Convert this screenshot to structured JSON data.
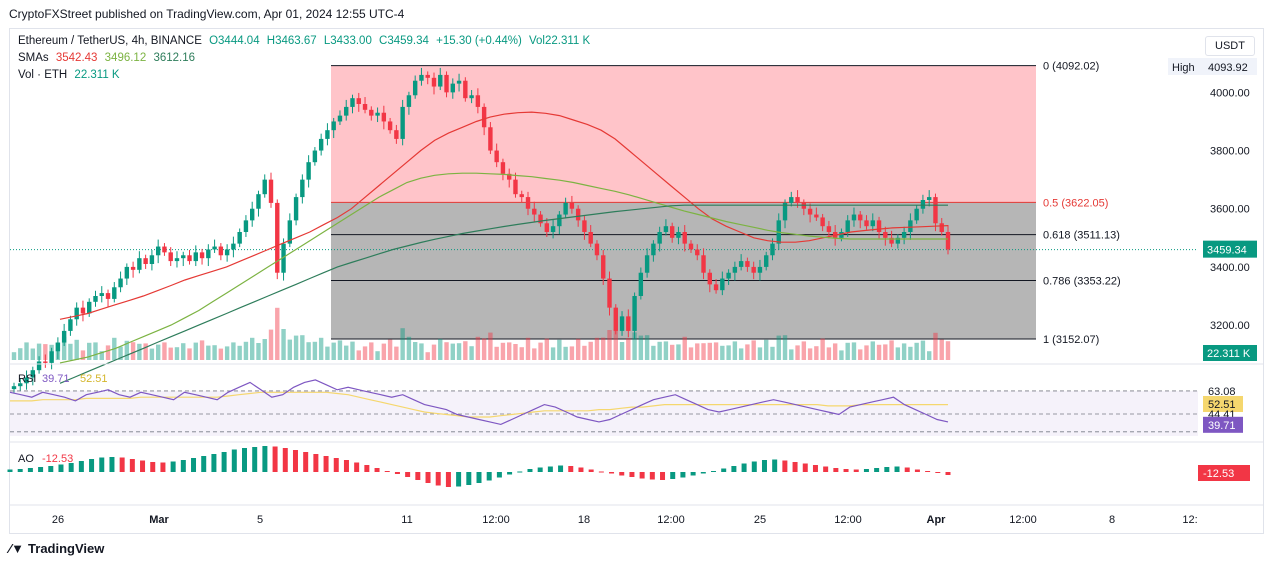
{
  "header": {
    "published": "CryptoFXStreet published on TradingView.com, Apr 01, 2024 12:55 UTC-4"
  },
  "legend": {
    "symbol": "Ethereum / TetherUS, 4h, BINANCE",
    "open": "O3444.04",
    "high": "H3463.67",
    "low": "L3433.00",
    "close": "C3459.34",
    "change": "+15.30 (+0.44%)",
    "vol": "Vol22.311 K",
    "sma_label": "SMAs",
    "sma1": "3542.43",
    "sma2": "3496.12",
    "sma3": "3612.16",
    "vol_label": "Vol · ETH",
    "vol_value": "22.311 K"
  },
  "unit_button": "USDT",
  "footer": {
    "brand": "TradingView"
  },
  "colors": {
    "up": "#089981",
    "down": "#f23645",
    "sma_fast": "#e53935",
    "sma_mid": "#7cb342",
    "sma_slow": "#2e7d5b",
    "fib_upper": "#ffc1c6",
    "fib_lower": "#b2b2b2",
    "rsi": "#7e57c2",
    "rsi_ma": "#f5d76e"
  },
  "chart_data": {
    "type": "candlestick",
    "price_axis": {
      "ticks": [
        "4000.00",
        "3800.00",
        "3600.00",
        "3400.00",
        "3200.00"
      ],
      "tick_values": [
        4000,
        3800,
        3600,
        3400,
        3200
      ],
      "range": [
        3080,
        4180
      ]
    },
    "time_axis": [
      "26",
      "Mar",
      "5",
      "11",
      "12:00",
      "18",
      "12:00",
      "25",
      "12:00",
      "Apr",
      "12:00",
      "8",
      "12:"
    ],
    "high_label": "High",
    "high_value": "4093.92",
    "last_price": "3459.34",
    "volume_label": "22.311 K",
    "fib_levels": [
      {
        "label": "0 (4092.02)",
        "value": 4092.02,
        "color": "#131722"
      },
      {
        "label": "0.5 (3622.05)",
        "value": 3622.05,
        "color": "#e53935"
      },
      {
        "label": "0.618 (3511.13)",
        "value": 3511.13,
        "color": "#131722"
      },
      {
        "label": "0.786 (3353.22)",
        "value": 3353.22,
        "color": "#131722"
      },
      {
        "label": "1 (3152.07)",
        "value": 3152.07,
        "color": "#131722"
      }
    ],
    "candles_close": [
      2990,
      3000,
      3020,
      3045,
      3075,
      3070,
      3110,
      3140,
      3180,
      3220,
      3260,
      3240,
      3280,
      3300,
      3310,
      3290,
      3330,
      3360,
      3400,
      3390,
      3430,
      3410,
      3440,
      3470,
      3450,
      3420,
      3430,
      3440,
      3420,
      3450,
      3430,
      3460,
      3470,
      3440,
      3460,
      3480,
      3520,
      3560,
      3600,
      3650,
      3700,
      3620,
      3380,
      3480,
      3560,
      3640,
      3700,
      3760,
      3800,
      3840,
      3870,
      3900,
      3920,
      3950,
      3980,
      3960,
      3940,
      3920,
      3930,
      3900,
      3870,
      3840,
      3950,
      3990,
      4040,
      4060,
      4050,
      4020,
      4060,
      4000,
      4030,
      4040,
      3980,
      3990,
      3950,
      3880,
      3800,
      3760,
      3720,
      3700,
      3650,
      3640,
      3600,
      3580,
      3550,
      3520,
      3540,
      3580,
      3620,
      3600,
      3560,
      3520,
      3480,
      3440,
      3360,
      3260,
      3180,
      3230,
      3180,
      3300,
      3380,
      3440,
      3480,
      3520,
      3540,
      3500,
      3520,
      3480,
      3460,
      3440,
      3380,
      3340,
      3320,
      3360,
      3380,
      3400,
      3420,
      3400,
      3380,
      3400,
      3440,
      3480,
      3560,
      3620,
      3640,
      3620,
      3600,
      3580,
      3570,
      3540,
      3520,
      3500,
      3520,
      3560,
      3580,
      3560,
      3540,
      3560,
      3520,
      3500,
      3480,
      3500,
      3520,
      3560,
      3600,
      3630,
      3640,
      3550,
      3520,
      3460
    ],
    "sma_fast": [
      3220,
      3230,
      3240,
      3255,
      3270,
      3285,
      3300,
      3318,
      3336,
      3355,
      3370,
      3385,
      3400,
      3420,
      3440,
      3460,
      3480,
      3500,
      3520,
      3545,
      3570,
      3600,
      3640,
      3680,
      3720,
      3760,
      3800,
      3835,
      3860,
      3880,
      3900,
      3915,
      3925,
      3930,
      3932,
      3928,
      3920,
      3905,
      3890,
      3870,
      3840,
      3800,
      3760,
      3720,
      3680,
      3640,
      3600,
      3565,
      3540,
      3520,
      3500,
      3490,
      3485,
      3485,
      3490,
      3500,
      3510,
      3520,
      3525,
      3530,
      3534,
      3536,
      3538,
      3540,
      3542
    ],
    "sma_mid": [
      3070,
      3080,
      3090,
      3105,
      3120,
      3140,
      3160,
      3180,
      3200,
      3225,
      3250,
      3280,
      3310,
      3340,
      3370,
      3400,
      3430,
      3460,
      3490,
      3520,
      3550,
      3580,
      3610,
      3640,
      3665,
      3690,
      3705,
      3715,
      3720,
      3722,
      3722,
      3720,
      3718,
      3714,
      3710,
      3704,
      3698,
      3690,
      3680,
      3670,
      3660,
      3648,
      3634,
      3620,
      3606,
      3592,
      3580,
      3568,
      3556,
      3546,
      3536,
      3526,
      3518,
      3512,
      3506,
      3502,
      3498,
      3496,
      3496,
      3496,
      3496,
      3496,
      3496,
      3496,
      3496
    ],
    "sma_slow": [
      3000,
      3020,
      3040,
      3060,
      3080,
      3100,
      3120,
      3140,
      3160,
      3180,
      3200,
      3220,
      3240,
      3260,
      3280,
      3300,
      3320,
      3340,
      3360,
      3380,
      3400,
      3415,
      3430,
      3445,
      3460,
      3472,
      3484,
      3495,
      3505,
      3515,
      3523,
      3531,
      3539,
      3546,
      3553,
      3560,
      3566,
      3572,
      3578,
      3584,
      3590,
      3595,
      3600,
      3605,
      3610,
      3612,
      3612,
      3612,
      3612,
      3612,
      3612,
      3612,
      3612,
      3612,
      3612,
      3612,
      3612,
      3612,
      3612,
      3612,
      3612,
      3612,
      3612,
      3612,
      3612
    ],
    "rsi": {
      "label": "RSI",
      "value": "39.71",
      "ma_value": "52.51",
      "levels": [
        "63.08",
        "44.41"
      ],
      "values": [
        62,
        60,
        58,
        62,
        60,
        58,
        55,
        60,
        62,
        64,
        60,
        58,
        62,
        60,
        58,
        56,
        62,
        60,
        58,
        56,
        62,
        66,
        70,
        64,
        58,
        60,
        66,
        70,
        72,
        68,
        64,
        66,
        64,
        62,
        60,
        58,
        60,
        56,
        52,
        50,
        48,
        44,
        42,
        40,
        38,
        36,
        40,
        44,
        48,
        52,
        50,
        46,
        42,
        40,
        38,
        40,
        44,
        48,
        52,
        56,
        58,
        60,
        56,
        52,
        48,
        46,
        48,
        50,
        52,
        54,
        56,
        54,
        52,
        50,
        48,
        46,
        44,
        50,
        52,
        54,
        56,
        58,
        52,
        48,
        44,
        40,
        38
      ],
      "ma": [
        55,
        55,
        55,
        56,
        56,
        56,
        56,
        57,
        57,
        57,
        57,
        57,
        58,
        58,
        58,
        58,
        58,
        58,
        58,
        58,
        59,
        60,
        61,
        62,
        62,
        62,
        62,
        62,
        62,
        62,
        61,
        60,
        58,
        56,
        54,
        52,
        50,
        48,
        46,
        45,
        44,
        43,
        42,
        42,
        42,
        43,
        44,
        45,
        46,
        47,
        47,
        47,
        47,
        47,
        48,
        48,
        49,
        50,
        50,
        51,
        52,
        52,
        52,
        52,
        52,
        52,
        52,
        52,
        52,
        52,
        52,
        52,
        52,
        52,
        52,
        51,
        51,
        51,
        52,
        52,
        52,
        52,
        52,
        52,
        52,
        52,
        52
      ]
    },
    "ao": {
      "label": "AO",
      "value": "-12.53",
      "values": [
        10,
        12,
        16,
        20,
        24,
        30,
        36,
        44,
        52,
        58,
        60,
        58,
        52,
        46,
        40,
        38,
        42,
        48,
        56,
        64,
        72,
        80,
        90,
        96,
        100,
        104,
        102,
        96,
        88,
        80,
        72,
        64,
        56,
        48,
        38,
        28,
        16,
        4,
        -8,
        -20,
        -32,
        -44,
        -54,
        -60,
        -58,
        -52,
        -44,
        -34,
        -22,
        -10,
        2,
        12,
        18,
        22,
        26,
        24,
        18,
        10,
        2,
        -6,
        -14,
        -20,
        -26,
        -30,
        -32,
        -28,
        -22,
        -14,
        -6,
        4,
        14,
        24,
        34,
        42,
        48,
        50,
        46,
        40,
        34,
        28,
        22,
        16,
        12,
        10,
        12,
        16,
        20,
        22,
        18,
        10,
        4,
        -4,
        -12
      ]
    }
  }
}
